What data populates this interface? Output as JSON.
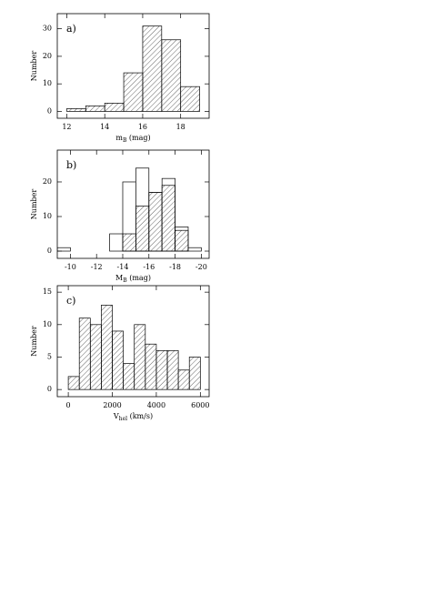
{
  "chart_data": [
    {
      "type": "histogram",
      "annotation": "a)",
      "y_label": "Number",
      "x_label": [
        "m",
        "B",
        " (mag)"
      ],
      "bins": [
        12,
        13,
        14,
        15,
        16,
        17,
        18,
        19
      ],
      "series": [
        {
          "color": "#000000",
          "hatch": true,
          "values": [
            1,
            2,
            3,
            14,
            31,
            26,
            9
          ]
        }
      ],
      "xlim": [
        11.5,
        19.5
      ],
      "xticks": [
        12,
        14,
        16,
        18
      ],
      "ylim": [
        -2.5,
        35.5
      ],
      "yticks": [
        0,
        10,
        20,
        30
      ]
    },
    {
      "type": "histogram",
      "annotation": "b)",
      "y_label": "Number",
      "x_label": [
        "M",
        "B",
        " (mag)"
      ],
      "bins": [
        -9,
        -10,
        -11,
        -12,
        -13,
        -14,
        -15,
        -16,
        -17,
        -18,
        -19,
        -20
      ],
      "series": [
        {
          "color": "#000000",
          "hatch": false,
          "values": [
            1,
            0,
            0,
            0,
            5,
            20,
            24,
            17,
            21,
            7,
            1
          ]
        },
        {
          "color": "#000000",
          "hatch": true,
          "values": [
            0,
            0,
            0,
            0,
            0,
            5,
            13,
            17,
            19,
            6,
            0
          ]
        }
      ],
      "xlim": [
        -9,
        -20.6
      ],
      "xticks": [
        -10,
        -12,
        -14,
        -16,
        -18,
        -20
      ],
      "ylim": [
        -2.1,
        29.2
      ],
      "yticks": [
        0,
        10,
        20
      ]
    },
    {
      "type": "histogram",
      "annotation": "c)",
      "y_label": "Number",
      "x_label": [
        "V",
        "hel",
        " (km/s)"
      ],
      "bins": [
        0,
        500,
        1000,
        1500,
        2000,
        2500,
        3000,
        3500,
        4000,
        4500,
        5000,
        5500,
        6000
      ],
      "series": [
        {
          "color": "#000000",
          "hatch": true,
          "values": [
            2,
            11,
            10,
            13,
            9,
            4,
            10,
            7,
            6,
            6,
            3,
            5
          ]
        }
      ],
      "xlim": [
        -500,
        6400
      ],
      "xticks": [
        0,
        2000,
        4000,
        6000
      ],
      "ylim": [
        -1.1,
        16
      ],
      "yticks": [
        0,
        5,
        10,
        15
      ]
    }
  ]
}
